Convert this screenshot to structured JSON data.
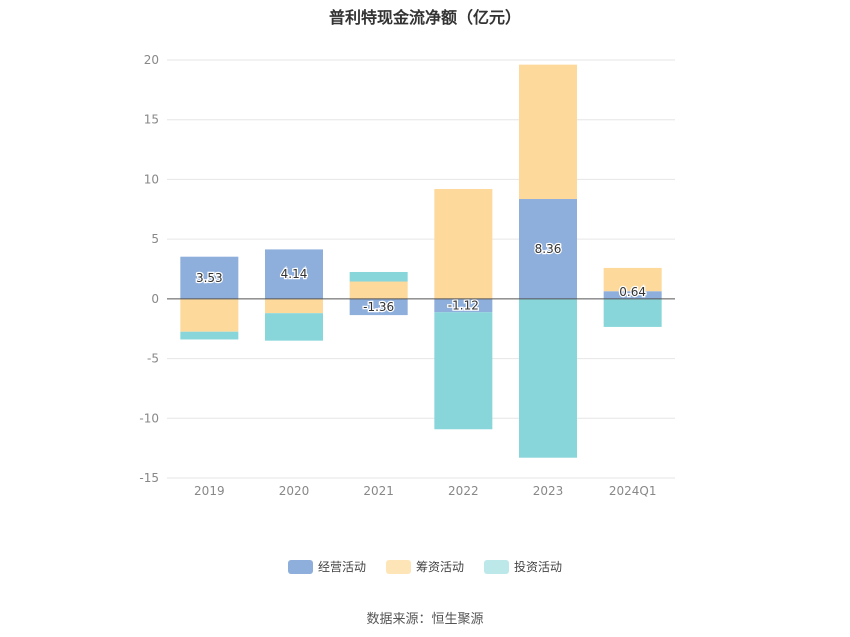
{
  "chart_data": {
    "type": "bar",
    "stacked": true,
    "title": "普利特现金流净额（亿元）",
    "categories": [
      "2019",
      "2020",
      "2021",
      "2022",
      "2023",
      "2024Q1"
    ],
    "series": [
      {
        "name": "经营活动",
        "color": "#8eaedc",
        "values": [
          3.53,
          4.14,
          -1.36,
          -1.12,
          8.36,
          0.64
        ]
      },
      {
        "name": "筹资活动",
        "color": "#fdd99b",
        "values": [
          -2.75,
          -1.2,
          1.45,
          9.2,
          11.25,
          1.95
        ]
      },
      {
        "name": "投资活动",
        "color": "#88d6da",
        "values": [
          -0.65,
          -2.3,
          0.8,
          -9.8,
          -13.3,
          -2.35
        ]
      }
    ],
    "data_labels": [
      "3.53",
      "4.14",
      "-1.36",
      "-1.12",
      "8.36",
      "0.64"
    ],
    "yticks": [
      "20",
      "15",
      "10",
      "5",
      "0",
      "-5",
      "-10",
      "-15"
    ],
    "ylim": [
      -15,
      20
    ],
    "grid": true,
    "legend_position": "bottom"
  },
  "legend": [
    {
      "label": "经营活动",
      "color": "#8eaedc"
    },
    {
      "label": "筹资活动",
      "color": "#fde5b8"
    },
    {
      "label": "投资活动",
      "color": "#bde8ea"
    }
  ],
  "source": "数据来源：恒生聚源"
}
